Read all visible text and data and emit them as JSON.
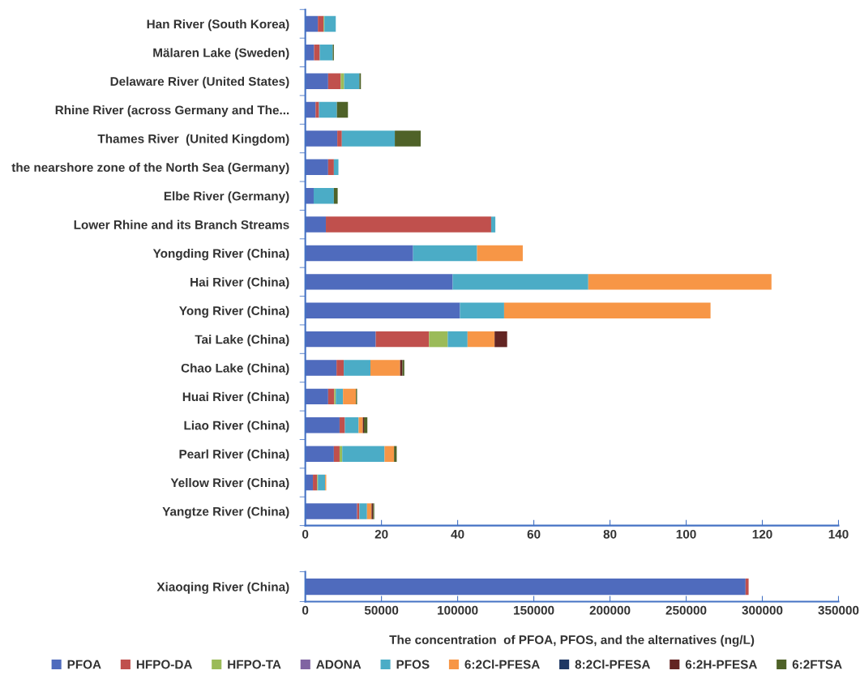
{
  "chart_data": [
    {
      "type": "bar",
      "orientation": "horizontal",
      "stacked": true,
      "legend": "bottom",
      "grid": false,
      "categories": [
        "Han River (South Korea)",
        "Mälaren Lake (Sweden)",
        "Delaware River (United States)",
        "Rhine River (across Germany and The...",
        "Thames River  (United Kingdom)",
        "the nearshore zone of the North Sea (Germany)",
        "Elbe River (Germany)",
        "Lower Rhine and its Branch Streams",
        "Yongding River (China)",
        "Hai River (China)",
        "Yong River (China)",
        "Tai Lake (China)",
        "Chao Lake (China)",
        "Huai River (China)",
        "Liao River (China)",
        "Pearl River (China)",
        "Yellow River (China)",
        "Yangtze River (China)"
      ],
      "xlim": [
        0,
        140
      ],
      "xticks": [
        0,
        20,
        40,
        60,
        80,
        100,
        120,
        140
      ],
      "series": [
        {
          "name": "PFOA",
          "color": "#4f6bbd",
          "values": [
            3.3,
            2.3,
            6.0,
            2.7,
            8.4,
            6.0,
            2.2,
            5.4,
            28.3,
            38.7,
            40.6,
            18.5,
            8.2,
            6.0,
            9.0,
            7.5,
            2.0,
            13.6
          ]
        },
        {
          "name": "HFPO-DA",
          "color": "#c0504d",
          "values": [
            1.5,
            1.5,
            3.3,
            0.9,
            1.2,
            1.5,
            null,
            43.4,
            null,
            null,
            null,
            14.0,
            1.9,
            1.6,
            1.4,
            1.5,
            1.1,
            0.6
          ]
        },
        {
          "name": "HFPO-TA",
          "color": "#9bbb59",
          "values": [
            0.2,
            null,
            0.9,
            null,
            null,
            null,
            null,
            null,
            null,
            null,
            null,
            4.9,
            null,
            0.4,
            null,
            0.7,
            0.2,
            null
          ]
        },
        {
          "name": "ADONA",
          "color": "#8064a2",
          "values": [
            null,
            null,
            null,
            null,
            null,
            null,
            null,
            null,
            null,
            null,
            null,
            null,
            null,
            null,
            null,
            null,
            null,
            null
          ]
        },
        {
          "name": "PFOS",
          "color": "#4bacc6",
          "values": [
            3.0,
            3.4,
            4.0,
            4.7,
            13.9,
            1.2,
            5.3,
            1.1,
            16.8,
            35.6,
            11.6,
            5.2,
            7.0,
            1.9,
            3.6,
            11.1,
            1.9,
            2.0
          ]
        },
        {
          "name": "6:2Cl-PFESA",
          "color": "#f79646",
          "values": [
            null,
            null,
            null,
            null,
            null,
            null,
            null,
            null,
            12.0,
            48.1,
            54.2,
            7.1,
            7.8,
            3.4,
            1.1,
            2.5,
            0.3,
            1.2
          ]
        },
        {
          "name": "8:2Cl-PFESA",
          "color": "#1f3864",
          "values": [
            null,
            null,
            null,
            null,
            null,
            null,
            null,
            null,
            null,
            null,
            null,
            null,
            null,
            null,
            null,
            null,
            null,
            null
          ]
        },
        {
          "name": "6:2H-PFESA",
          "color": "#632523",
          "values": [
            null,
            null,
            null,
            null,
            null,
            null,
            null,
            null,
            null,
            null,
            null,
            3.3,
            0.6,
            null,
            0.3,
            null,
            null,
            0.4
          ]
        },
        {
          "name": "6:2FTSA",
          "color": "#4f6228",
          "values": [
            null,
            0.3,
            0.4,
            2.9,
            6.8,
            null,
            1.0,
            null,
            null,
            null,
            null,
            null,
            0.5,
            0.3,
            0.9,
            0.7,
            null,
            0.3
          ]
        }
      ]
    },
    {
      "type": "bar",
      "orientation": "horizontal",
      "stacked": true,
      "grid": false,
      "categories": [
        "Xiaoqing River (China)"
      ],
      "xlim": [
        0,
        350000
      ],
      "xticks": [
        0,
        50000,
        100000,
        150000,
        200000,
        250000,
        300000,
        350000
      ],
      "xlabel": "The concentration  of PFOA, PFOS, and the alternatives (ng/L)",
      "series": [
        {
          "color": "#4f6bbd",
          "values": [
            289000
          ]
        },
        {
          "color": "#c0504d",
          "values": [
            2000
          ]
        }
      ]
    }
  ]
}
